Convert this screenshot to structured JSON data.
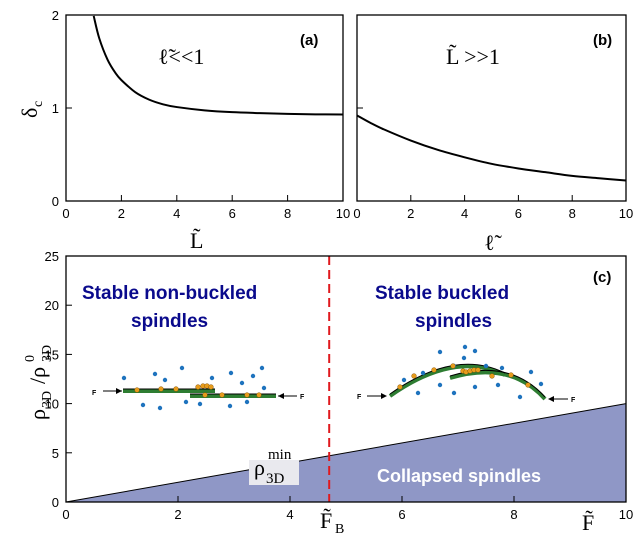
{
  "chart_data": [
    {
      "type": "line",
      "panel": "(a)",
      "annotation": "ℓ̃<<1",
      "xlabel": "L̃",
      "ylabel": "δc",
      "xlim": [
        0,
        10
      ],
      "ylim": [
        0,
        2
      ],
      "xticks": [
        0,
        2,
        4,
        6,
        8,
        10
      ],
      "yticks": [
        0,
        1,
        2
      ],
      "series": [
        {
          "x": [
            1.0,
            1.2,
            1.5,
            1.8,
            2.0,
            2.5,
            3.0,
            3.5,
            4.0,
            5.0,
            6.0,
            7.0,
            8.0,
            9.0,
            10.0
          ],
          "values": [
            1.99,
            1.75,
            1.52,
            1.37,
            1.3,
            1.17,
            1.09,
            1.04,
            1.01,
            0.975,
            0.955,
            0.945,
            0.937,
            0.932,
            0.93
          ]
        }
      ]
    },
    {
      "type": "line",
      "panel": "(b)",
      "annotation": "L̃ >>1",
      "xlabel": "ℓ̃",
      "ylabel": "",
      "xlim": [
        0,
        10
      ],
      "ylim": [
        0,
        2
      ],
      "xticks": [
        0,
        2,
        4,
        6,
        8,
        10
      ],
      "yticks": [
        0,
        1,
        2
      ],
      "series": [
        {
          "x": [
            0,
            0.5,
            1,
            2,
            3,
            4,
            5,
            6,
            7,
            8,
            9,
            10
          ],
          "values": [
            0.92,
            0.84,
            0.77,
            0.65,
            0.55,
            0.47,
            0.4,
            0.35,
            0.31,
            0.27,
            0.245,
            0.22
          ]
        }
      ]
    },
    {
      "type": "area",
      "panel": "(c)",
      "xlabel": "F̃",
      "ylabel": "ρ3D/ρ⁰3D",
      "xlim": [
        0,
        10
      ],
      "ylim": [
        0,
        25
      ],
      "xticks": [
        0,
        2,
        4,
        6,
        8,
        10
      ],
      "yticks": [
        0,
        5,
        10,
        15,
        20,
        25
      ],
      "boundary": {
        "x": [
          0,
          10
        ],
        "values": [
          0,
          10
        ]
      },
      "fill_color": "#8f97c6",
      "critical_force": {
        "x": 4.7,
        "label": "F̃B",
        "color": "#e0191e"
      },
      "min_density_label": "ρ3D^min",
      "regions": {
        "left": "Stable non-buckled spindles",
        "right": "Stable buckled spindles",
        "bottom": "Collapsed spindles"
      }
    }
  ],
  "labels": {
    "a_tag": "(a)",
    "b_tag": "(b)",
    "c_tag": "(c)",
    "a_note": "ℓ̃<<1",
    "b_note": "L̃ >>1",
    "a_xlabel": "L̃",
    "b_xlabel": "ℓ̃",
    "c_xlabel": "F̃",
    "fb_main": "F̃",
    "fb_sub": "B",
    "ylab_a_main": "δ",
    "ylab_a_sub": "c",
    "ylab_c_rho": "ρ",
    "ylab_c_sub": "3D",
    "ylab_c_slash": "/ρ",
    "ylab_c_sup": "0",
    "rho_main": "ρ",
    "rho_sup": "min",
    "rho_sub": "3D",
    "left_line1": "Stable non-buckled",
    "left_line2": "spindles",
    "right_line1": "Stable buckled",
    "right_line2": "spindles",
    "collapsed": "Collapsed spindles",
    "force_label": "F"
  }
}
